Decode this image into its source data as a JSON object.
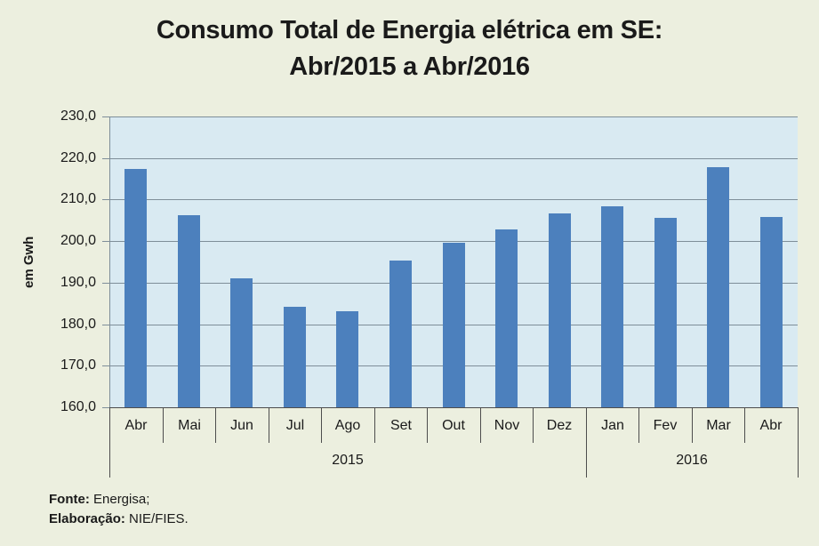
{
  "title": {
    "line1": "Consumo Total de Energia elétrica em SE:",
    "line2": "Abr/2015 a Abr/2016"
  },
  "chart_data": {
    "type": "bar",
    "title": "Consumo Total de Energia elétrica em SE: Abr/2015 a Abr/2016",
    "ylabel": "em Gwh",
    "ylim": [
      160,
      230
    ],
    "ytick_step": 10,
    "ytick_decimal_separator": ",",
    "grid": true,
    "categories": [
      "Abr",
      "Mai",
      "Jun",
      "Jul",
      "Ago",
      "Set",
      "Out",
      "Nov",
      "Dez",
      "Jan",
      "Fev",
      "Mar",
      "Abr"
    ],
    "values": [
      217.4,
      206.3,
      191.0,
      184.1,
      183.2,
      195.4,
      199.6,
      202.8,
      206.7,
      208.4,
      205.6,
      217.9,
      205.8
    ],
    "year_groups": [
      {
        "label": "2015",
        "months": 9
      },
      {
        "label": "2016",
        "months": 4
      }
    ],
    "colors": {
      "bar": "#4C80BD",
      "plot_bg": "#D9EAF2",
      "grid": "#7E8E99",
      "axis": "#4D4D4D",
      "page_bg": "#ECEFDF",
      "text": "#1A1A1A"
    }
  },
  "footer": {
    "lines": [
      {
        "label": "Fonte:",
        "value": "Energisa;"
      },
      {
        "label": "Elaboração:",
        "value": "NIE/FIES."
      }
    ]
  }
}
